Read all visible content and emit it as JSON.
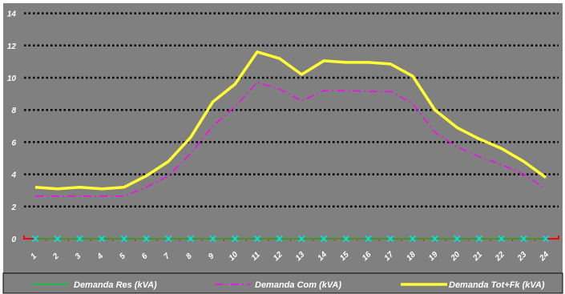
{
  "chart_data": {
    "type": "line",
    "x": [
      "1",
      "2",
      "3",
      "4",
      "5",
      "6",
      "7",
      "8",
      "9",
      "10",
      "11",
      "12",
      "13",
      "14",
      "15",
      "16",
      "17",
      "18",
      "19",
      "20",
      "21",
      "22",
      "23",
      "24"
    ],
    "ylim": [
      0,
      14
    ],
    "yticks": [
      "0",
      "2",
      "4",
      "6",
      "8",
      "10",
      "12",
      "14"
    ],
    "grid": true,
    "legend_position": "bottom",
    "series": [
      {
        "name": "Demanda Res (kVA)",
        "color": "#00cc33",
        "marker_color": "#00e5e5",
        "values": [
          0,
          0,
          0,
          0,
          0,
          0,
          0,
          0,
          0,
          0,
          0,
          0,
          0,
          0,
          0,
          0,
          0,
          0,
          0,
          0,
          0,
          0,
          0,
          0
        ]
      },
      {
        "name": "Demanda Com (kVA)",
        "color": "#ff00ff",
        "values": [
          2.65,
          2.65,
          2.65,
          2.65,
          2.65,
          3.2,
          3.9,
          5.3,
          7.0,
          8.2,
          9.7,
          9.3,
          8.55,
          9.2,
          9.2,
          9.15,
          9.15,
          8.4,
          6.6,
          5.7,
          5.1,
          4.6,
          4.0,
          3.1
        ]
      },
      {
        "name": "Demanda Tot+Fk (kVA)",
        "color": "#ffff33",
        "values": [
          3.2,
          3.1,
          3.2,
          3.1,
          3.2,
          3.9,
          4.8,
          6.3,
          8.5,
          9.6,
          11.6,
          11.2,
          10.2,
          11.05,
          10.95,
          10.95,
          10.85,
          10.1,
          8.0,
          6.9,
          6.2,
          5.6,
          4.8,
          3.8
        ]
      }
    ]
  }
}
